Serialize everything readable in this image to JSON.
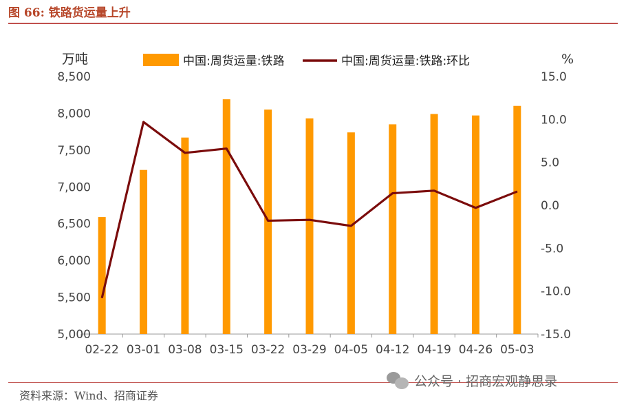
{
  "figure_title": "图 66:  铁路货运量上升",
  "source": "资料来源：Wind、招商证券",
  "watermark": "公众号 · 招商宏观静思录",
  "colors": {
    "bar": "#ff9900",
    "line": "#7b0c0c",
    "title": "#b7472a"
  },
  "chart_data": {
    "type": "bar+line",
    "categories": [
      "02-22",
      "03-01",
      "03-08",
      "03-15",
      "03-22",
      "03-29",
      "04-05",
      "04-12",
      "04-19",
      "04-26",
      "05-03"
    ],
    "series": [
      {
        "name": "中国:周货运量:铁路",
        "type": "bar",
        "axis": "left",
        "values": [
          6590,
          7230,
          7670,
          8190,
          8050,
          7930,
          7740,
          7850,
          7990,
          7970,
          8100
        ]
      },
      {
        "name": "中国:周货运量:铁路:环比",
        "type": "line",
        "axis": "right",
        "values": [
          -10.8,
          9.7,
          6.1,
          6.6,
          -1.8,
          -1.7,
          -2.4,
          1.4,
          1.7,
          -0.3,
          1.6
        ]
      }
    ],
    "y_left": {
      "unit": "万吨",
      "min": 5000,
      "max": 8500,
      "ticks": [
        "5,000",
        "5,500",
        "6,000",
        "6,500",
        "7,000",
        "7,500",
        "8,000",
        "8,500"
      ]
    },
    "y_right": {
      "unit": "%",
      "min": -15,
      "max": 15,
      "ticks": [
        "-15.0",
        "-10.0",
        "-5.0",
        "0.0",
        "5.0",
        "10.0",
        "15.0"
      ]
    },
    "legend": "top",
    "grid": false
  }
}
